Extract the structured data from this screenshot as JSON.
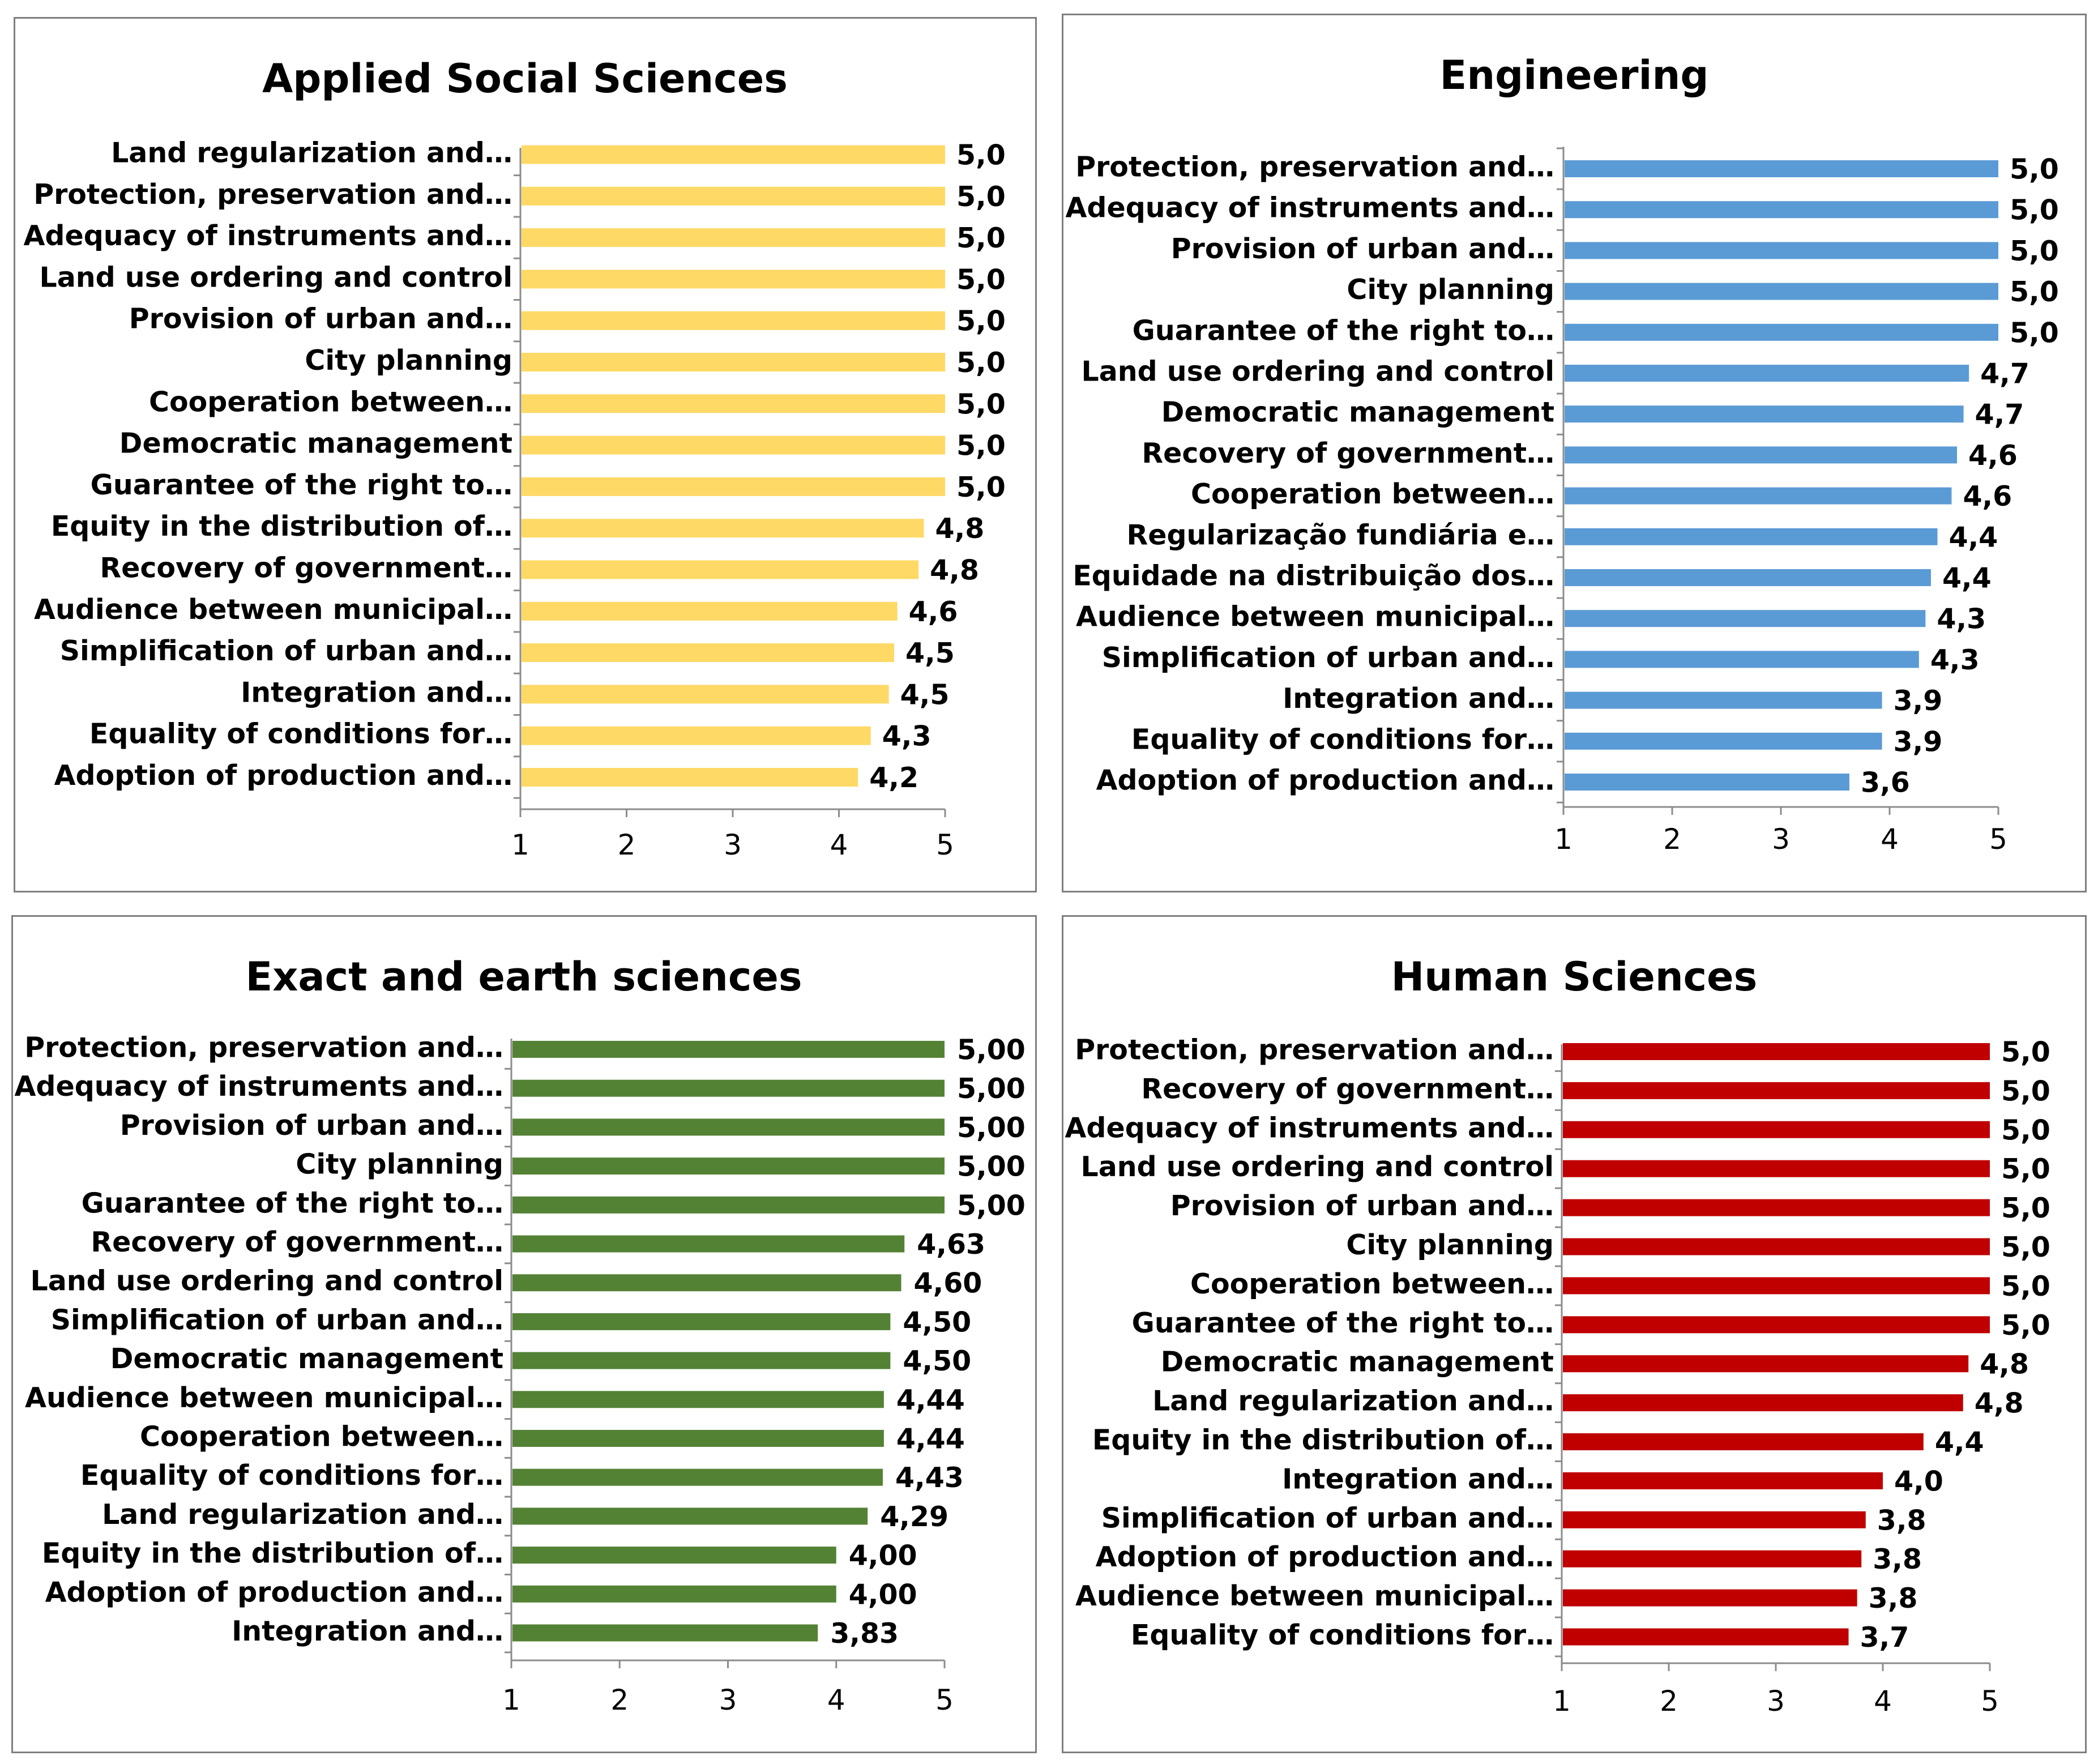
{
  "chart_data": [
    {
      "type": "bar",
      "orientation": "horizontal",
      "title": "Applied Social Sciences",
      "color": "#FFD966",
      "xlim": [
        1,
        5
      ],
      "ticks": [
        "1",
        "2",
        "3",
        "4",
        "5"
      ],
      "categories": [
        "Land regularization and…",
        "Protection, preservation and…",
        "Adequacy of instruments and…",
        "Land use ordering and control",
        "Provision of urban and…",
        "City planning",
        "Cooperation between…",
        "Democratic management",
        "Guarantee of the right to…",
        "Equity in the distribution of…",
        "Recovery of government…",
        "Audience between municipal…",
        "Simplification of urban and…",
        "Integration and…",
        "Equality of conditions for…",
        "Adoption of production and…"
      ],
      "values": [
        5.0,
        5.0,
        5.0,
        5.0,
        5.0,
        5.0,
        5.0,
        5.0,
        5.0,
        4.8,
        4.75,
        4.55,
        4.52,
        4.47,
        4.3,
        4.18
      ],
      "value_labels": [
        "5,0",
        "5,0",
        "5,0",
        "5,0",
        "5,0",
        "5,0",
        "5,0",
        "5,0",
        "5,0",
        "4,8",
        "4,8",
        "4,6",
        "4,5",
        "4,5",
        "4,3",
        "4,2"
      ]
    },
    {
      "type": "bar",
      "orientation": "horizontal",
      "title": "Engineering",
      "color": "#5B9BD5",
      "xlim": [
        1,
        5
      ],
      "ticks": [
        "1",
        "2",
        "3",
        "4",
        "5"
      ],
      "categories": [
        "Protection, preservation and…",
        "Adequacy of instruments and…",
        "Provision of urban and…",
        "City planning",
        "Guarantee of the right to…",
        "Land use ordering and control",
        "Democratic management",
        "Recovery of government…",
        "Cooperation between…",
        "Regularização fundiária e…",
        "Equidade na distribuição dos…",
        "Audience between municipal…",
        "Simplification of urban and…",
        "Integration and…",
        "Equality of conditions for…",
        "Adoption of production and…"
      ],
      "values": [
        5.0,
        5.0,
        5.0,
        5.0,
        5.0,
        4.73,
        4.68,
        4.62,
        4.57,
        4.44,
        4.38,
        4.33,
        4.27,
        3.93,
        3.93,
        3.63
      ],
      "value_labels": [
        "5,0",
        "5,0",
        "5,0",
        "5,0",
        "5,0",
        "4,7",
        "4,7",
        "4,6",
        "4,6",
        "4,4",
        "4,4",
        "4,3",
        "4,3",
        "3,9",
        "3,9",
        "3,6"
      ]
    },
    {
      "type": "bar",
      "orientation": "horizontal",
      "title": "Exact and earth sciences",
      "color": "#548235",
      "xlim": [
        1,
        5
      ],
      "ticks": [
        "1",
        "2",
        "3",
        "4",
        "5"
      ],
      "categories": [
        "Protection, preservation and…",
        "Adequacy of instruments and…",
        "Provision of urban and…",
        "City planning",
        "Guarantee of the right to…",
        "Recovery of government…",
        "Land use ordering and control",
        "Simplification of urban and…",
        "Democratic management",
        "Audience between municipal…",
        "Cooperation between…",
        "Equality of conditions for…",
        "Land regularization and…",
        "Equity in the distribution of…",
        "Adoption of production and…",
        "Integration and…"
      ],
      "values": [
        5.0,
        5.0,
        5.0,
        5.0,
        5.0,
        4.63,
        4.6,
        4.5,
        4.5,
        4.44,
        4.44,
        4.43,
        4.29,
        4.0,
        4.0,
        3.83
      ],
      "value_labels": [
        "5,00",
        "5,00",
        "5,00",
        "5,00",
        "5,00",
        "4,63",
        "4,60",
        "4,50",
        "4,50",
        "4,44",
        "4,44",
        "4,43",
        "4,29",
        "4,00",
        "4,00",
        "3,83"
      ]
    },
    {
      "type": "bar",
      "orientation": "horizontal",
      "title": "Human Sciences",
      "color": "#C00000",
      "xlim": [
        1,
        5
      ],
      "ticks": [
        "1",
        "2",
        "3",
        "4",
        "5"
      ],
      "categories": [
        "Protection, preservation and…",
        "Recovery of government…",
        "Adequacy of instruments and…",
        "Land use ordering and control",
        "Provision of urban and…",
        "City planning",
        "Cooperation between…",
        "Guarantee of the right to…",
        "Democratic management",
        "Land regularization and…",
        "Equity in the distribution of…",
        "Integration and…",
        "Simplification of urban and…",
        "Adoption of production and…",
        "Audience between municipal…",
        "Equality of conditions for…"
      ],
      "values": [
        5.0,
        5.0,
        5.0,
        5.0,
        5.0,
        5.0,
        5.0,
        5.0,
        4.8,
        4.75,
        4.38,
        4.0,
        3.84,
        3.8,
        3.76,
        3.68
      ],
      "value_labels": [
        "5,0",
        "5,0",
        "5,0",
        "5,0",
        "5,0",
        "5,0",
        "5,0",
        "5,0",
        "4,8",
        "4,8",
        "4,4",
        "4,0",
        "3,8",
        "3,8",
        "3,8",
        "3,7"
      ]
    }
  ]
}
